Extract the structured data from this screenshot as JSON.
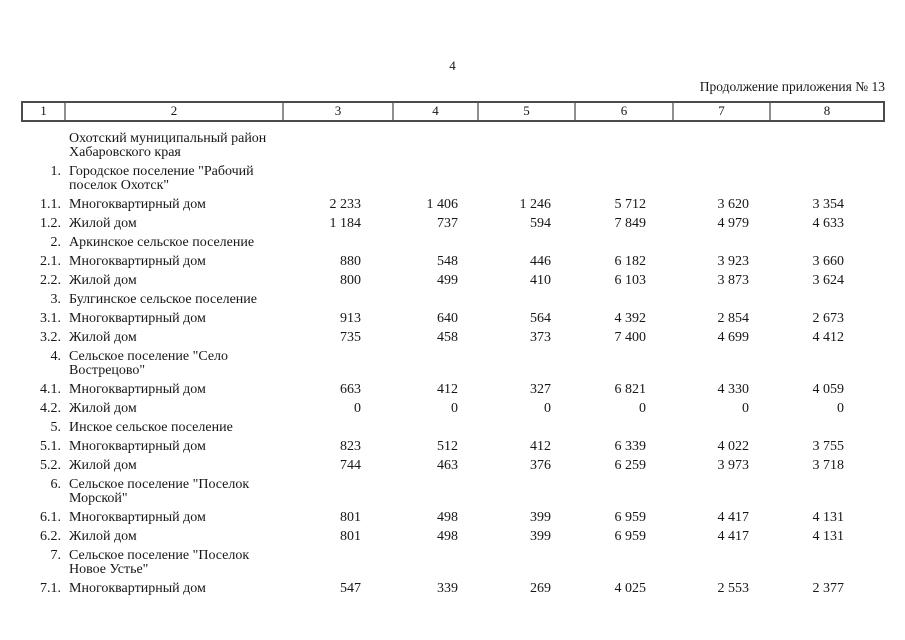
{
  "page": {
    "number": "4",
    "continuation": "Продолжение приложения № 13"
  },
  "table": {
    "column_numbers": [
      "1",
      "2",
      "3",
      "4",
      "5",
      "6",
      "7",
      "8"
    ],
    "rows": [
      {
        "num": "",
        "label": "Охотский муниципальный район Хабаровского края",
        "values": [
          "",
          "",
          "",
          "",
          "",
          ""
        ]
      },
      {
        "num": "1.",
        "label": "Городское поселение \"Рабочий поселок Охотск\"",
        "values": [
          "",
          "",
          "",
          "",
          "",
          ""
        ]
      },
      {
        "num": "1.1.",
        "label": "Многоквартирный дом",
        "values": [
          "2 233",
          "1 406",
          "1 246",
          "5 712",
          "3 620",
          "3 354"
        ]
      },
      {
        "num": "1.2.",
        "label": "Жилой дом",
        "values": [
          "1 184",
          "737",
          "594",
          "7 849",
          "4 979",
          "4 633"
        ]
      },
      {
        "num": "2.",
        "label": "Аркинское сельское поселение",
        "values": [
          "",
          "",
          "",
          "",
          "",
          ""
        ]
      },
      {
        "num": "2.1.",
        "label": "Многоквартирный дом",
        "values": [
          "880",
          "548",
          "446",
          "6 182",
          "3 923",
          "3 660"
        ]
      },
      {
        "num": "2.2.",
        "label": "Жилой дом",
        "values": [
          "800",
          "499",
          "410",
          "6 103",
          "3 873",
          "3 624"
        ]
      },
      {
        "num": "3.",
        "label": "Булгинское сельское поселение",
        "values": [
          "",
          "",
          "",
          "",
          "",
          ""
        ]
      },
      {
        "num": "3.1.",
        "label": "Многоквартирный дом",
        "values": [
          "913",
          "640",
          "564",
          "4 392",
          "2 854",
          "2 673"
        ]
      },
      {
        "num": "3.2.",
        "label": "Жилой дом",
        "values": [
          "735",
          "458",
          "373",
          "7 400",
          "4 699",
          "4 412"
        ]
      },
      {
        "num": "4.",
        "label": "Сельское поселение \"Село Вострецово\"",
        "values": [
          "",
          "",
          "",
          "",
          "",
          ""
        ]
      },
      {
        "num": "4.1.",
        "label": "Многоквартирный дом",
        "values": [
          "663",
          "412",
          "327",
          "6 821",
          "4 330",
          "4 059"
        ]
      },
      {
        "num": "4.2.",
        "label": "Жилой дом",
        "values": [
          "0",
          "0",
          "0",
          "0",
          "0",
          "0"
        ]
      },
      {
        "num": "5.",
        "label": "Инское сельское поселение",
        "values": [
          "",
          "",
          "",
          "",
          "",
          ""
        ]
      },
      {
        "num": "5.1.",
        "label": "Многоквартирный дом",
        "values": [
          "823",
          "512",
          "412",
          "6 339",
          "4 022",
          "3 755"
        ]
      },
      {
        "num": "5.2.",
        "label": "Жилой дом",
        "values": [
          "744",
          "463",
          "376",
          "6 259",
          "3 973",
          "3 718"
        ]
      },
      {
        "num": "6.",
        "label": "Сельское поселение \"Поселок Морской\"",
        "values": [
          "",
          "",
          "",
          "",
          "",
          ""
        ]
      },
      {
        "num": "6.1.",
        "label": "Многоквартирный дом",
        "values": [
          "801",
          "498",
          "399",
          "6 959",
          "4 417",
          "4 131"
        ]
      },
      {
        "num": "6.2.",
        "label": "Жилой дом",
        "values": [
          "801",
          "498",
          "399",
          "6 959",
          "4 417",
          "4 131"
        ]
      },
      {
        "num": "7.",
        "label": "Сельское поселение \"Поселок Новое Устье\"",
        "values": [
          "",
          "",
          "",
          "",
          "",
          ""
        ]
      },
      {
        "num": "7.1.",
        "label": "Многоквартирный дом",
        "values": [
          "547",
          "339",
          "269",
          "4 025",
          "2 553",
          "2 377"
        ]
      }
    ]
  }
}
